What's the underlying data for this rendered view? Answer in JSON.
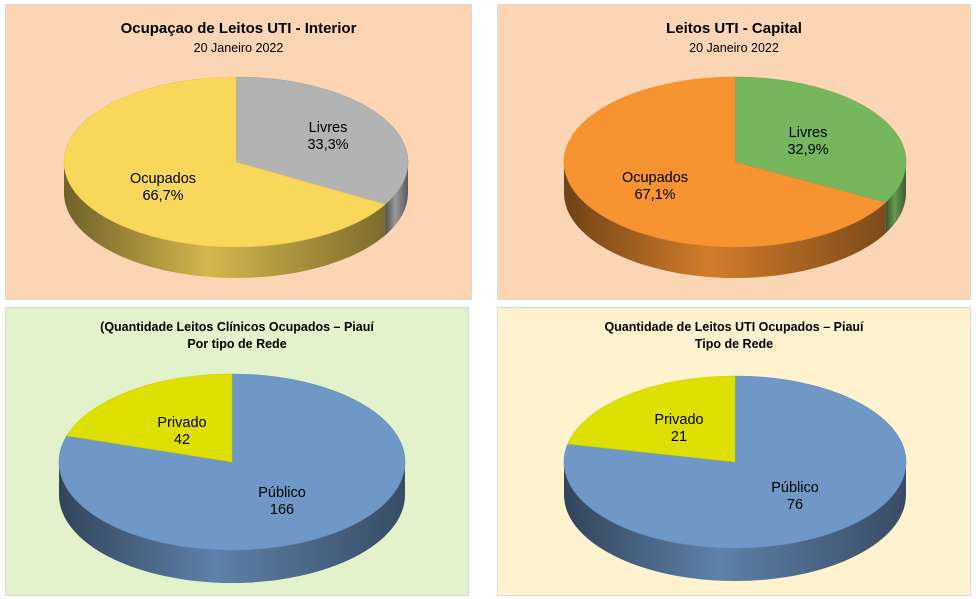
{
  "chart_data": [
    {
      "type": "pie",
      "title": "Ocupaçao de Leitos UTI - Interior",
      "subtitle": "20 Janeiro 2022",
      "background": "#fcd5b5",
      "slices": [
        {
          "label": "Livres",
          "value_label": "33,3%",
          "value": 33.3,
          "color": "#b3b3b3"
        },
        {
          "label": "Ocupados",
          "value_label": "66,7%",
          "value": 66.7,
          "color": "#f9d75a"
        }
      ]
    },
    {
      "type": "pie",
      "title": "Leitos UTI - Capital",
      "subtitle": "20 Janeiro 2022",
      "background": "#fcd5b5",
      "slices": [
        {
          "label": "Livres",
          "value_label": "32,9%",
          "value": 32.9,
          "color": "#76b65c"
        },
        {
          "label": "Ocupados",
          "value_label": "67,1%",
          "value": 67.1,
          "color": "#f79331"
        }
      ]
    },
    {
      "type": "pie",
      "title": "(Quantidade Leitos Clínicos Ocupados – Piauí",
      "subtitle": "Por tipo de Rede",
      "background": "#e2f3cb",
      "slices": [
        {
          "label": "Público",
          "value_label": "166",
          "value": 166,
          "color": "#6f98c7"
        },
        {
          "label": "Privado",
          "value_label": "42",
          "value": 42,
          "color": "#dde000"
        }
      ]
    },
    {
      "type": "pie",
      "title": "Quantidade de Leitos UTI Ocupados – Piauí",
      "subtitle": "Tipo de Rede",
      "background": "#fff3cf",
      "slices": [
        {
          "label": "Público",
          "value_label": "76",
          "value": 76,
          "color": "#6f98c7"
        },
        {
          "label": "Privado",
          "value_label": "21",
          "value": 21,
          "color": "#dde000"
        }
      ]
    }
  ]
}
